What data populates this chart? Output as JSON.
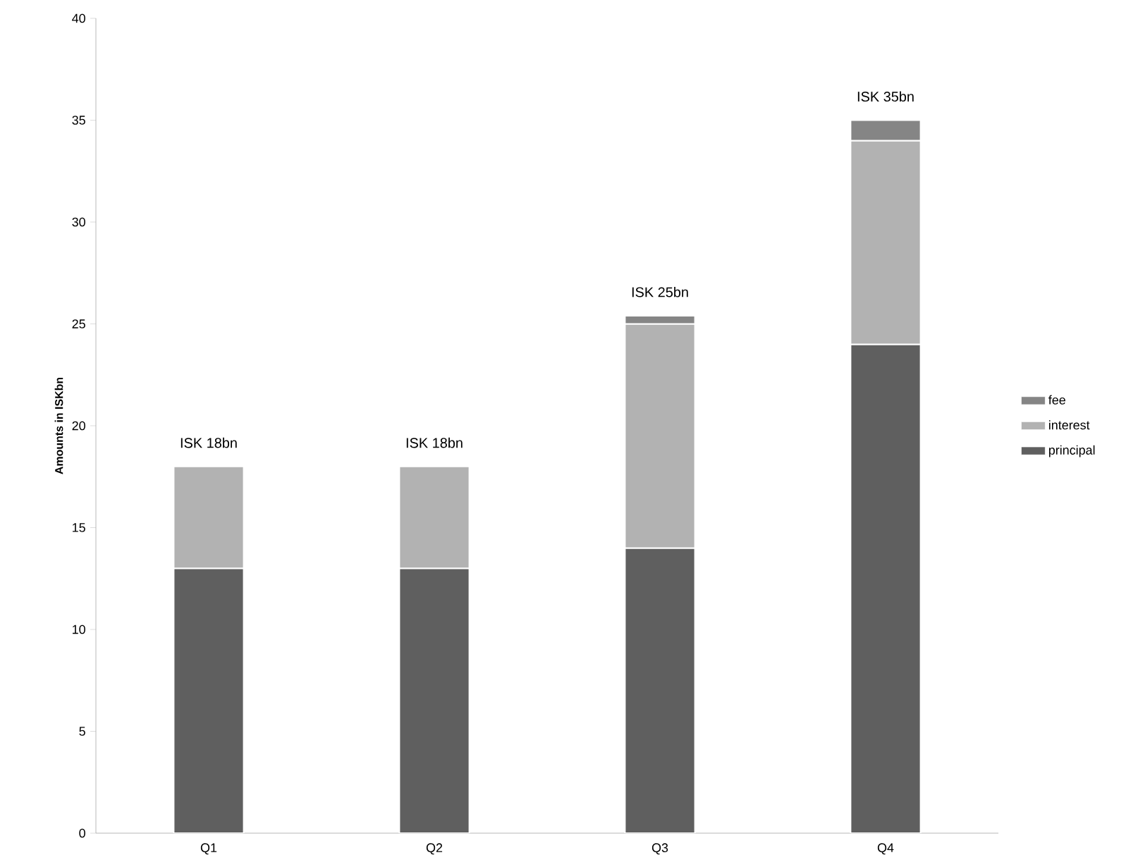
{
  "chart_data": {
    "type": "bar",
    "stacked": true,
    "ylabel": "Amounts in ISKbn",
    "categories": [
      "Q1",
      "Q2",
      "Q3",
      "Q4"
    ],
    "series": [
      {
        "name": "principal",
        "color": "#5f5f5f",
        "values": [
          13,
          13,
          14,
          24
        ]
      },
      {
        "name": "interest",
        "color": "#b2b2b2",
        "values": [
          5,
          5,
          11,
          10
        ]
      },
      {
        "name": "fee",
        "color": "#858585",
        "values": [
          null,
          null,
          0.4,
          1
        ]
      }
    ],
    "totals": [
      "ISK 18bn",
      "ISK 18bn",
      "ISK 25bn",
      "ISK 35bn"
    ],
    "ylim": [
      0,
      40
    ],
    "yticks": [
      0,
      5,
      10,
      15,
      20,
      25,
      30,
      35,
      40
    ],
    "grid": false,
    "legend": "right"
  }
}
